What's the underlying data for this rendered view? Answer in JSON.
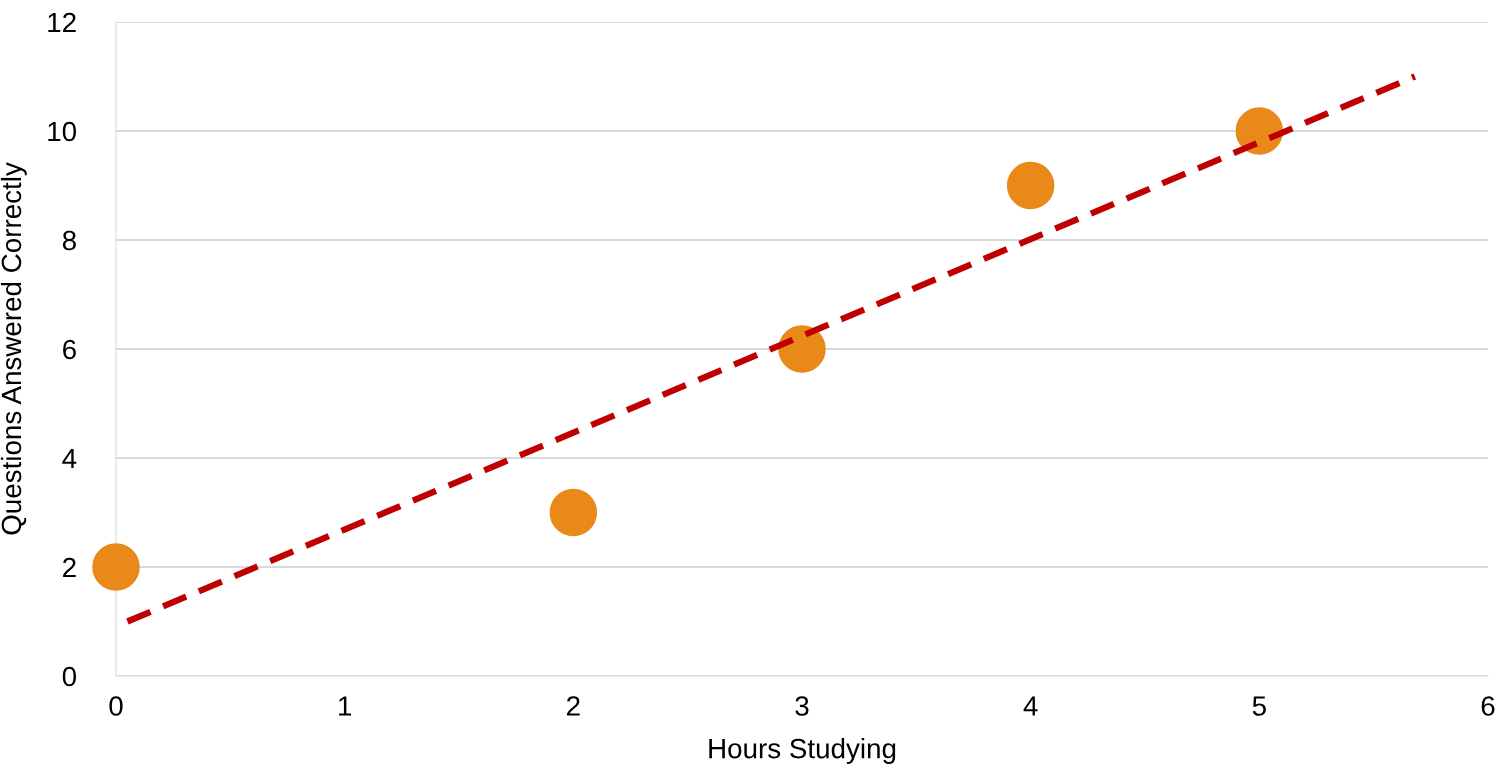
{
  "chart_data": {
    "type": "scatter",
    "xlabel": "Hours Studying",
    "ylabel": "Questions Answered Correctly",
    "series": [
      {
        "color": "#e8891a",
        "x": [
          0,
          2,
          3,
          4,
          5
        ],
        "values": [
          2,
          3,
          6,
          9,
          10
        ],
        "marker": "circle"
      },
      {
        "type": "line",
        "color": "#c00000",
        "x": [
          0.05,
          5.68
        ],
        "values": [
          1.0,
          11.0
        ],
        "line_style": "dashed",
        "marker": "none"
      }
    ],
    "xlim": [
      0,
      6
    ],
    "xticks": [
      0,
      1,
      2,
      3,
      4,
      5,
      6
    ],
    "ylim": [
      0,
      12
    ],
    "yticks": [
      0,
      2,
      4,
      6,
      8,
      10,
      12
    ],
    "grid": "y",
    "legend": false
  }
}
